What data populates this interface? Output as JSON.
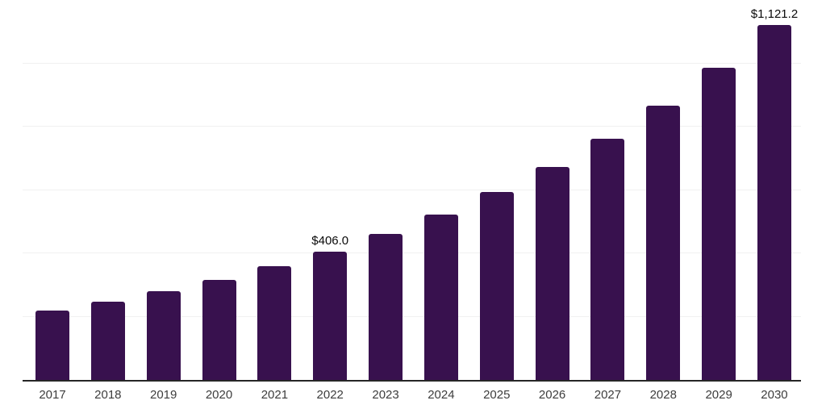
{
  "chart_data": {
    "type": "bar",
    "title": "",
    "xlabel": "",
    "ylabel": "",
    "categories": [
      "2017",
      "2018",
      "2019",
      "2020",
      "2021",
      "2022",
      "2023",
      "2024",
      "2025",
      "2026",
      "2027",
      "2028",
      "2029",
      "2030"
    ],
    "values": [
      220,
      247,
      280,
      316,
      360,
      406.0,
      460,
      522,
      594,
      672,
      762,
      867,
      985,
      1121.2
    ],
    "data_labels": {
      "2022": "$406.0",
      "2030": "$1,121.2"
    },
    "ylim": [
      0,
      1200
    ],
    "gridline_step": 200,
    "grid": "horizontal-only",
    "legend": "none",
    "bar_color": "#38114E",
    "axis_line_color": "#262626",
    "gridline_color": "#f1f1f1",
    "tick_label_color": "#3d3d3d",
    "data_label_color": "#0a0a0a"
  }
}
